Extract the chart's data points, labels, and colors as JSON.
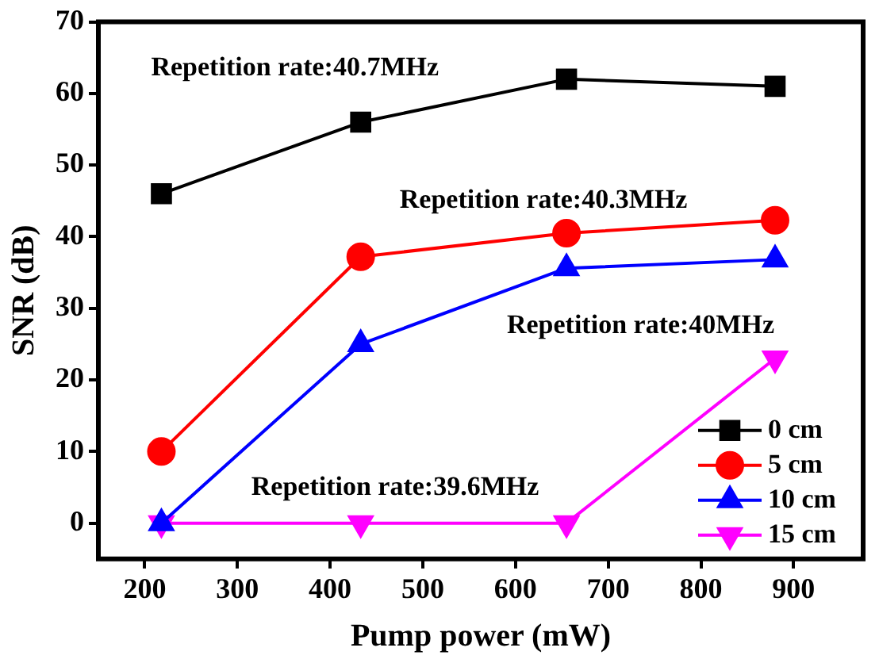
{
  "chart_data": {
    "type": "line",
    "xlabel": "Pump power (mW)",
    "ylabel": "SNR (dB)",
    "x": [
      218,
      433,
      655,
      880
    ],
    "series": [
      {
        "name": "0 cm",
        "color": "#000000",
        "marker": "square",
        "values": [
          46,
          56,
          62,
          61
        ]
      },
      {
        "name": "5 cm",
        "color": "#ff0000",
        "marker": "circle",
        "values": [
          10,
          37.2,
          40.5,
          42.3
        ]
      },
      {
        "name": "10 cm",
        "color": "#0000ff",
        "marker": "triangle",
        "values": [
          0,
          25,
          35.6,
          36.8
        ]
      },
      {
        "name": "15 cm",
        "color": "#ff00ff",
        "marker": "triangle-down",
        "values": [
          0,
          0,
          0,
          23
        ]
      }
    ],
    "xlim": [
      150,
      975
    ],
    "xticks": [
      200,
      300,
      400,
      500,
      600,
      700,
      800,
      900
    ],
    "ylim": [
      -5,
      70
    ],
    "yticks": [
      0,
      10,
      20,
      30,
      40,
      50,
      60,
      70
    ],
    "grid": false,
    "legend": "bottom right",
    "line_style": "solid",
    "annotations": [
      "Repetition rate:40.7MHz",
      "Repetition rate:40.3MHz",
      "Repetition rate:40MHz",
      "Repetition rate:39.6MHz"
    ]
  }
}
